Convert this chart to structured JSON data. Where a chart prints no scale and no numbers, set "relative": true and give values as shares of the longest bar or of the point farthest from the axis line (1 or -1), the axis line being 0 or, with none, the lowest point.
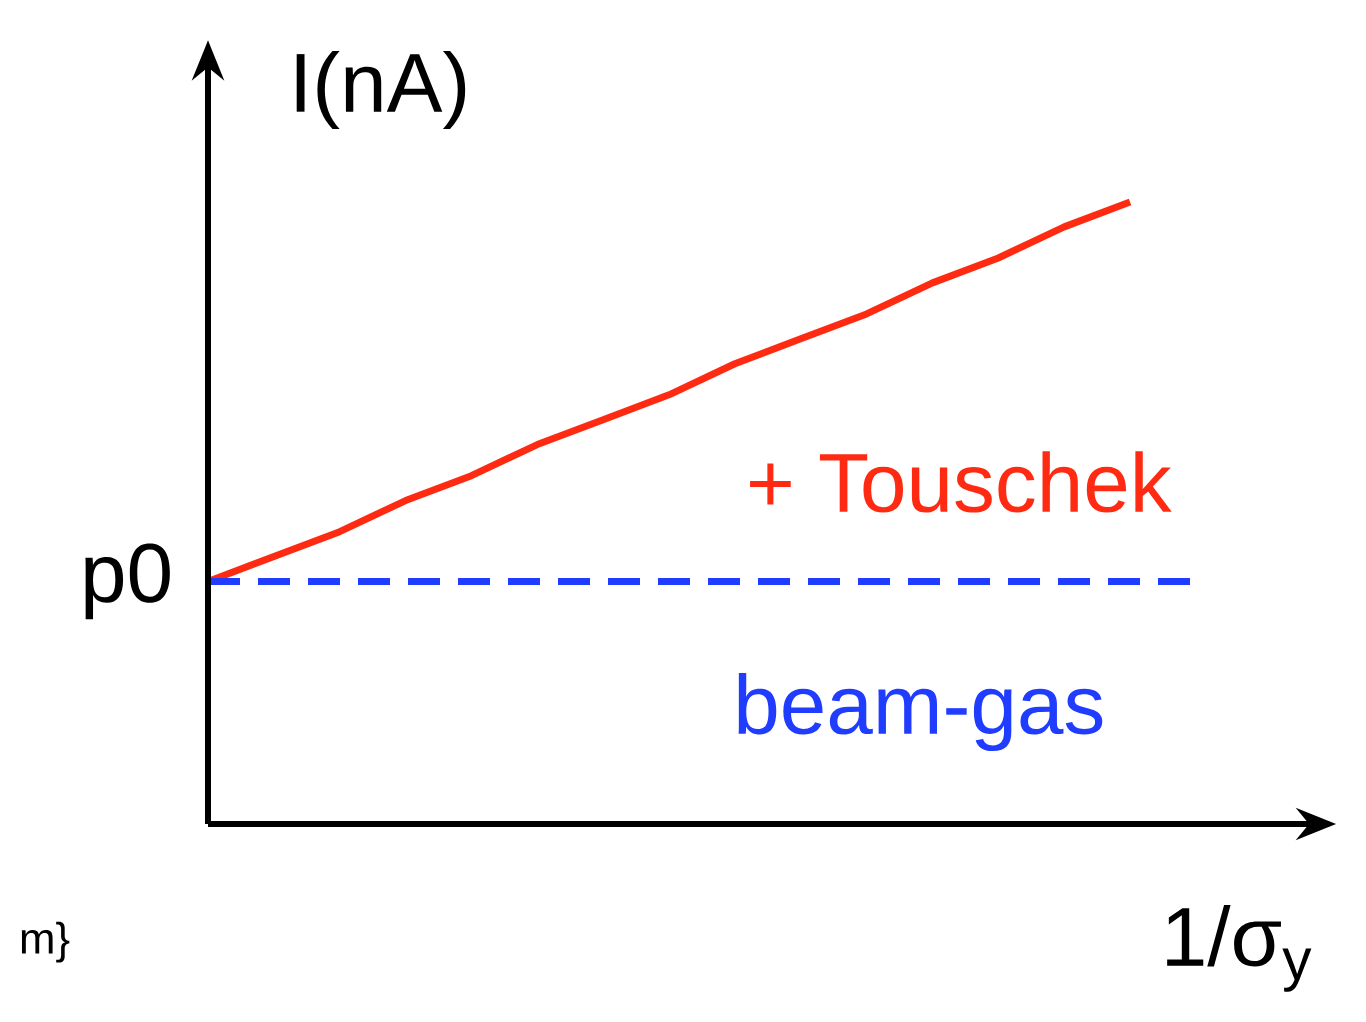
{
  "chart_data": {
    "type": "line",
    "relative": true,
    "xlabel": "1/σ$_{y}$",
    "ylabel": "I(nA)",
    "categories": [
      null,
      null,
      null,
      null,
      null,
      null,
      null,
      null,
      null,
      null,
      null,
      null,
      null,
      null,
      null,
      null
    ],
    "series": [
      {
        "name": "+ Touschek",
        "color": "#ff2a12",
        "line_style": "solid",
        "values": [
          0.39,
          0.43,
          0.47,
          0.52,
          0.56,
          0.61,
          0.65,
          0.69,
          0.74,
          0.78,
          0.82,
          0.87,
          0.91,
          0.96,
          1,
          null
        ]
      },
      {
        "name": "beam-gas",
        "color": "#1f3cff",
        "line_style": "dashed",
        "values": [
          0.39,
          0.39,
          0.39,
          0.39,
          0.39,
          0.39,
          0.39,
          0.39,
          0.39,
          0.39,
          0.39,
          0.39,
          0.39,
          0.39,
          0.39,
          0.39
        ]
      }
    ],
    "annotations": [
      "p0",
      "m}"
    ]
  }
}
